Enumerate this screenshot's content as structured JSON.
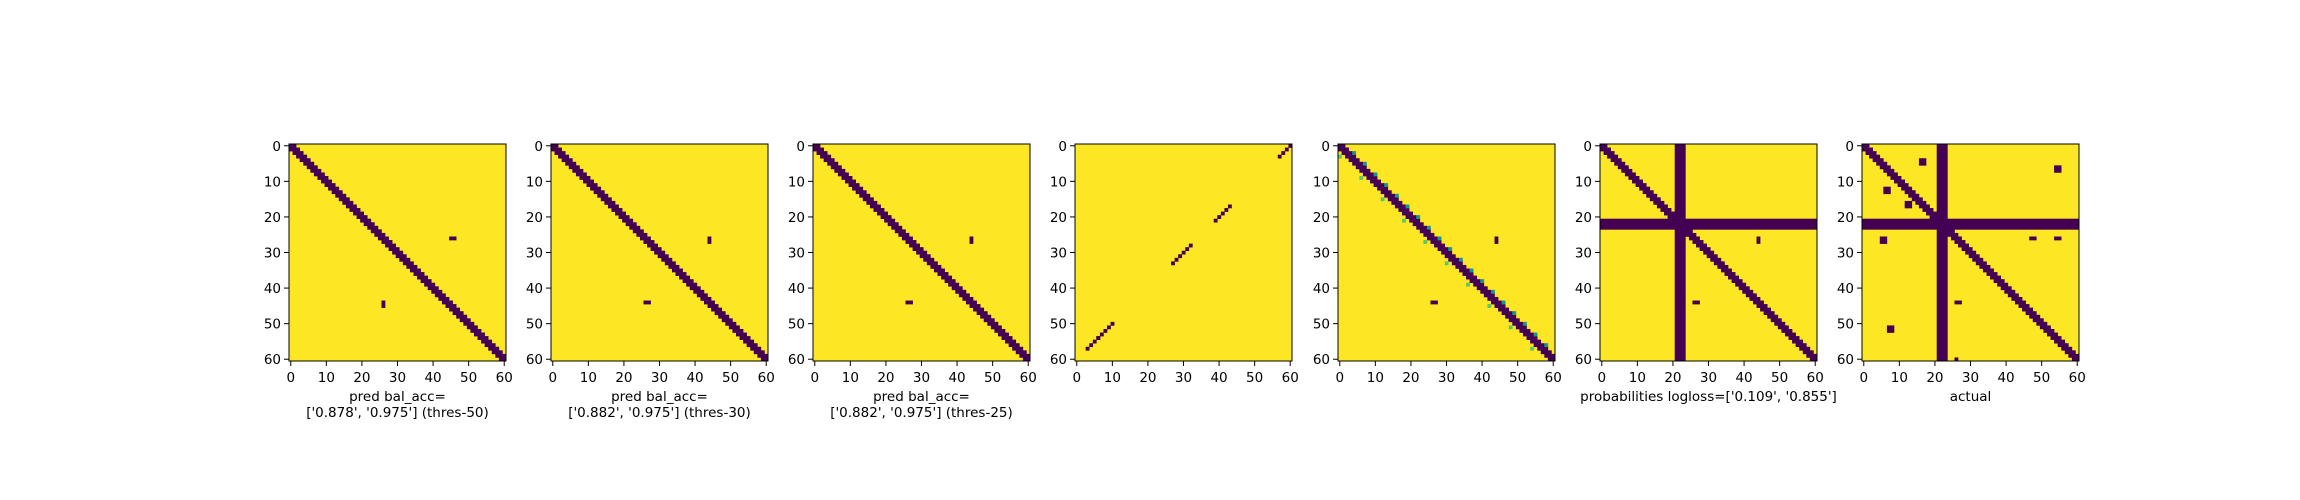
{
  "chart_data": [
    {
      "type": "heatmap",
      "panel": 1,
      "xlabel_lines": [
        "pred bal_acc=",
        "['0.878', '0.975'] (thres-50)"
      ],
      "xticks": [
        0,
        10,
        20,
        30,
        40,
        50,
        60
      ],
      "yticks": [
        0,
        10,
        20,
        30,
        40,
        50,
        60
      ],
      "grid_size": 61,
      "background_value": 1,
      "colors": {
        "high": "#fde725",
        "low": "#440154"
      },
      "diagonal_bands": [
        {
          "offset": 0,
          "halfwidth": 1
        }
      ],
      "blocks": [
        [
          26,
          45,
          1,
          2
        ],
        [
          44,
          26,
          2,
          1
        ]
      ]
    },
    {
      "type": "heatmap",
      "panel": 2,
      "xlabel_lines": [
        "pred bal_acc=",
        "['0.882', '0.975'] (thres-30)"
      ],
      "xticks": [
        0,
        10,
        20,
        30,
        40,
        50,
        60
      ],
      "yticks": [
        0,
        10,
        20,
        30,
        40,
        50,
        60
      ],
      "grid_size": 61,
      "background_value": 1,
      "colors": {
        "high": "#fde725",
        "low": "#440154"
      },
      "diagonal_bands": [
        {
          "offset": 0,
          "halfwidth": 1
        }
      ],
      "blocks": [
        [
          26,
          44,
          2,
          1
        ],
        [
          44,
          26,
          1,
          2
        ]
      ]
    },
    {
      "type": "heatmap",
      "panel": 3,
      "xlabel_lines": [
        "pred bal_acc=",
        "['0.882', '0.975'] (thres-25)"
      ],
      "xticks": [
        0,
        10,
        20,
        30,
        40,
        50,
        60
      ],
      "yticks": [
        0,
        10,
        20,
        30,
        40,
        50,
        60
      ],
      "grid_size": 61,
      "background_value": 1,
      "colors": {
        "high": "#fde725",
        "low": "#440154"
      },
      "diagonal_bands": [
        {
          "offset": 0,
          "halfwidth": 1
        }
      ],
      "blocks": [
        [
          26,
          44,
          2,
          1
        ],
        [
          44,
          26,
          1,
          2
        ]
      ]
    },
    {
      "type": "heatmap",
      "panel": 4,
      "xlabel_lines": [],
      "xticks": [
        0,
        10,
        20,
        30,
        40,
        50,
        60
      ],
      "yticks": [
        0,
        10,
        20,
        30,
        40,
        50,
        60
      ],
      "grid_size": 61,
      "background_value": 1,
      "colors": {
        "high": "#fde725",
        "low": "#440154"
      },
      "antidiagonal_segments": [
        [
          0,
          4
        ],
        [
          17,
          5
        ],
        [
          28,
          6
        ],
        [
          50,
          5
        ],
        [
          54,
          4
        ]
      ]
    },
    {
      "type": "heatmap",
      "panel": 5,
      "xlabel_lines": [],
      "xticks": [
        0,
        10,
        20,
        30,
        40,
        50,
        60
      ],
      "yticks": [
        0,
        10,
        20,
        30,
        40,
        50,
        60
      ],
      "grid_size": 61,
      "background_value": 1,
      "colors": {
        "high": "#fde725",
        "low": "#440154",
        "mid": "#21918c",
        "light": "#5ec962"
      },
      "diagonal_bands": [
        {
          "offset": 0,
          "halfwidth": 1
        }
      ],
      "speckle_near_diagonal": true,
      "blocks": [
        [
          26,
          44,
          2,
          1
        ],
        [
          44,
          26,
          1,
          2
        ]
      ]
    },
    {
      "type": "heatmap",
      "panel": 6,
      "xlabel_lines": [
        "probabilities logloss=['0.109', '0.855']"
      ],
      "xticks": [
        0,
        10,
        20,
        30,
        40,
        50,
        60
      ],
      "yticks": [
        0,
        10,
        20,
        30,
        40,
        50,
        60
      ],
      "grid_size": 61,
      "background_value": 1,
      "colors": {
        "high": "#fde725",
        "low": "#440154",
        "mid": "#21918c",
        "light": "#5ec962"
      },
      "diagonal_bands": [
        {
          "offset": 0,
          "halfwidth": 1
        }
      ],
      "stripes": {
        "row": 22,
        "col": 22,
        "halfwidth": 1
      },
      "blocks": [
        [
          26,
          44,
          2,
          1
        ],
        [
          44,
          26,
          1,
          2
        ]
      ]
    },
    {
      "type": "heatmap",
      "panel": 7,
      "xlabel_lines": [
        "actual"
      ],
      "xticks": [
        0,
        10,
        20,
        30,
        40,
        50,
        60
      ],
      "yticks": [
        0,
        10,
        20,
        30,
        40,
        50,
        60
      ],
      "grid_size": 61,
      "background_value": 1,
      "colors": {
        "high": "#fde725",
        "low": "#440154"
      },
      "diagonal_bands": [
        {
          "offset": 0,
          "halfwidth": 1
        }
      ],
      "stripes": {
        "row": 22,
        "col": 22,
        "halfwidth": 1
      },
      "blocks": [
        [
          4,
          16,
          2,
          2
        ],
        [
          6,
          54,
          2,
          2
        ],
        [
          12,
          6,
          2,
          2
        ],
        [
          16,
          12,
          2,
          2
        ],
        [
          26,
          5,
          2,
          2
        ],
        [
          26,
          47,
          1,
          2
        ],
        [
          26,
          54,
          1,
          2
        ],
        [
          44,
          26,
          1,
          2
        ],
        [
          51,
          7,
          2,
          2
        ],
        [
          60,
          26,
          1,
          1
        ]
      ]
    }
  ]
}
